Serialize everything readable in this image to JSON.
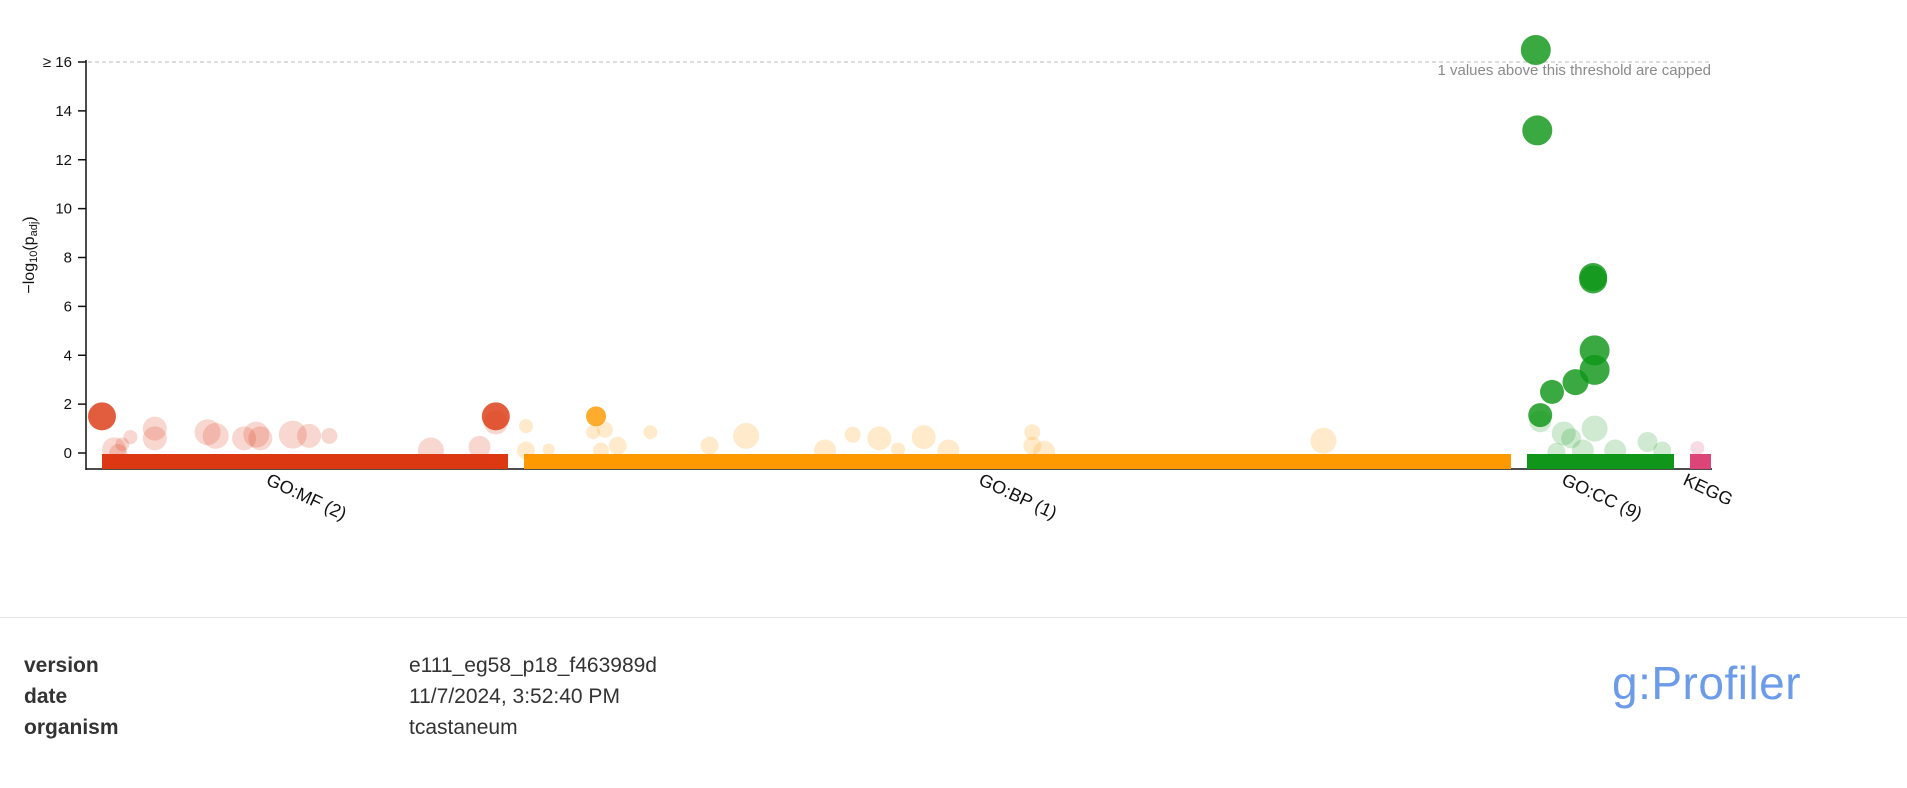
{
  "chart_data": {
    "type": "scatter",
    "ylabel_main": "−log",
    "ylabel_sub": "10",
    "ylabel_paren_open": "(p",
    "ylabel_adj": "adj",
    "ylabel_paren_close": ")",
    "ylim": [
      0,
      16
    ],
    "yticks": [
      {
        "value": 16,
        "label": "≥ 16"
      },
      {
        "value": 14,
        "label": "14"
      },
      {
        "value": 12,
        "label": "12"
      },
      {
        "value": 10,
        "label": "10"
      },
      {
        "value": 8,
        "label": "8"
      },
      {
        "value": 6,
        "label": "6"
      },
      {
        "value": 4,
        "label": "4"
      },
      {
        "value": 2,
        "label": "2"
      },
      {
        "value": 0,
        "label": "0"
      }
    ],
    "threshold": 16,
    "threshold_note": "1 values above this threshold are capped",
    "grid": false,
    "sources": [
      {
        "name": "GO:MF (2)",
        "color": "#dc3912"
      },
      {
        "name": "GO:BP (1)",
        "color": "#ff9900"
      },
      {
        "name": "GO:CC (9)",
        "color": "#109618"
      },
      {
        "name": "KEGG",
        "color": "#dd4477"
      }
    ],
    "points": [
      {
        "source": "GO:MF (2)",
        "x": 0.0,
        "y": 1.5,
        "size": 14,
        "significant": true
      },
      {
        "source": "GO:MF (2)",
        "x": 0.03,
        "y": 0.15,
        "size": 12,
        "significant": false
      },
      {
        "source": "GO:MF (2)",
        "x": 0.04,
        "y": 0.0,
        "size": 9,
        "significant": false
      },
      {
        "source": "GO:MF (2)",
        "x": 0.05,
        "y": 0.35,
        "size": 7,
        "significant": false
      },
      {
        "source": "GO:MF (2)",
        "x": 0.07,
        "y": 0.65,
        "size": 7,
        "significant": false
      },
      {
        "source": "GO:MF (2)",
        "x": 0.13,
        "y": 1.0,
        "size": 12,
        "significant": false
      },
      {
        "source": "GO:MF (2)",
        "x": 0.13,
        "y": 0.6,
        "size": 12,
        "significant": false
      },
      {
        "source": "GO:MF (2)",
        "x": 0.26,
        "y": 0.85,
        "size": 13,
        "significant": false
      },
      {
        "source": "GO:MF (2)",
        "x": 0.28,
        "y": 0.7,
        "size": 13,
        "significant": false
      },
      {
        "source": "GO:MF (2)",
        "x": 0.35,
        "y": 0.6,
        "size": 12,
        "significant": false
      },
      {
        "source": "GO:MF (2)",
        "x": 0.38,
        "y": 0.75,
        "size": 13,
        "significant": false
      },
      {
        "source": "GO:MF (2)",
        "x": 0.39,
        "y": 0.6,
        "size": 12,
        "significant": false
      },
      {
        "source": "GO:MF (2)",
        "x": 0.47,
        "y": 0.75,
        "size": 14,
        "significant": false
      },
      {
        "source": "GO:MF (2)",
        "x": 0.51,
        "y": 0.7,
        "size": 12,
        "significant": false
      },
      {
        "source": "GO:MF (2)",
        "x": 0.56,
        "y": 0.7,
        "size": 8,
        "significant": false
      },
      {
        "source": "GO:MF (2)",
        "x": 0.81,
        "y": 0.1,
        "size": 13,
        "significant": false
      },
      {
        "source": "GO:MF (2)",
        "x": 0.93,
        "y": 0.25,
        "size": 11,
        "significant": false
      },
      {
        "source": "GO:MF (2)",
        "x": 0.97,
        "y": 1.25,
        "size": 12,
        "significant": false
      },
      {
        "source": "GO:MF (2)",
        "x": 0.97,
        "y": 1.5,
        "size": 14,
        "significant": true
      },
      {
        "source": "GO:BP (1)",
        "x": 0.002,
        "y": 1.1,
        "size": 7,
        "significant": false
      },
      {
        "source": "GO:BP (1)",
        "x": 0.002,
        "y": 0.1,
        "size": 9,
        "significant": false
      },
      {
        "source": "GO:BP (1)",
        "x": 0.025,
        "y": 0.15,
        "size": 6,
        "significant": false
      },
      {
        "source": "GO:BP (1)",
        "x": 0.07,
        "y": 0.85,
        "size": 7,
        "significant": false
      },
      {
        "source": "GO:BP (1)",
        "x": 0.073,
        "y": 1.5,
        "size": 10,
        "significant": true
      },
      {
        "source": "GO:BP (1)",
        "x": 0.082,
        "y": 0.95,
        "size": 8,
        "significant": false
      },
      {
        "source": "GO:BP (1)",
        "x": 0.078,
        "y": 0.1,
        "size": 8,
        "significant": false
      },
      {
        "source": "GO:BP (1)",
        "x": 0.095,
        "y": 0.3,
        "size": 9,
        "significant": false
      },
      {
        "source": "GO:BP (1)",
        "x": 0.128,
        "y": 0.85,
        "size": 7,
        "significant": false
      },
      {
        "source": "GO:BP (1)",
        "x": 0.188,
        "y": 0.3,
        "size": 9,
        "significant": false
      },
      {
        "source": "GO:BP (1)",
        "x": 0.225,
        "y": 0.7,
        "size": 13,
        "significant": false
      },
      {
        "source": "GO:BP (1)",
        "x": 0.305,
        "y": 0.1,
        "size": 11,
        "significant": false
      },
      {
        "source": "GO:BP (1)",
        "x": 0.333,
        "y": 0.75,
        "size": 8,
        "significant": false
      },
      {
        "source": "GO:BP (1)",
        "x": 0.36,
        "y": 0.6,
        "size": 12,
        "significant": false
      },
      {
        "source": "GO:BP (1)",
        "x": 0.379,
        "y": 0.15,
        "size": 7,
        "significant": false
      },
      {
        "source": "GO:BP (1)",
        "x": 0.405,
        "y": 0.65,
        "size": 12,
        "significant": false
      },
      {
        "source": "GO:BP (1)",
        "x": 0.43,
        "y": 0.1,
        "size": 11,
        "significant": false
      },
      {
        "source": "GO:BP (1)",
        "x": 0.515,
        "y": 0.85,
        "size": 8,
        "significant": false
      },
      {
        "source": "GO:BP (1)",
        "x": 0.515,
        "y": 0.3,
        "size": 9,
        "significant": false
      },
      {
        "source": "GO:BP (1)",
        "x": 0.527,
        "y": 0.05,
        "size": 11,
        "significant": false
      },
      {
        "source": "GO:BP (1)",
        "x": 0.81,
        "y": 0.5,
        "size": 13,
        "significant": false
      },
      {
        "source": "GO:CC (9)",
        "x": 0.06,
        "y": 16.5,
        "size": 15,
        "significant": true
      },
      {
        "source": "GO:CC (9)",
        "x": 0.07,
        "y": 13.2,
        "size": 15,
        "significant": true
      },
      {
        "source": "GO:CC (9)",
        "x": 0.45,
        "y": 7.2,
        "size": 14,
        "significant": true
      },
      {
        "source": "GO:CC (9)",
        "x": 0.45,
        "y": 7.1,
        "size": 14,
        "significant": true
      },
      {
        "source": "GO:CC (9)",
        "x": 0.46,
        "y": 4.2,
        "size": 15,
        "significant": true
      },
      {
        "source": "GO:CC (9)",
        "x": 0.46,
        "y": 3.4,
        "size": 15,
        "significant": true
      },
      {
        "source": "GO:CC (9)",
        "x": 0.33,
        "y": 2.9,
        "size": 13,
        "significant": true
      },
      {
        "source": "GO:CC (9)",
        "x": 0.17,
        "y": 2.5,
        "size": 12,
        "significant": true
      },
      {
        "source": "GO:CC (9)",
        "x": 0.09,
        "y": 1.55,
        "size": 12,
        "significant": true
      },
      {
        "source": "GO:CC (9)",
        "x": 0.09,
        "y": 1.3,
        "size": 11,
        "significant": false
      },
      {
        "source": "GO:CC (9)",
        "x": 0.25,
        "y": 0.8,
        "size": 12,
        "significant": false
      },
      {
        "source": "GO:CC (9)",
        "x": 0.3,
        "y": 0.6,
        "size": 10,
        "significant": false
      },
      {
        "source": "GO:CC (9)",
        "x": 0.46,
        "y": 1.0,
        "size": 13,
        "significant": false
      },
      {
        "source": "GO:CC (9)",
        "x": 0.2,
        "y": 0.05,
        "size": 9,
        "significant": false
      },
      {
        "source": "GO:CC (9)",
        "x": 0.38,
        "y": 0.1,
        "size": 11,
        "significant": false
      },
      {
        "source": "GO:CC (9)",
        "x": 0.6,
        "y": 0.1,
        "size": 11,
        "significant": false
      },
      {
        "source": "GO:CC (9)",
        "x": 0.82,
        "y": 0.45,
        "size": 10,
        "significant": false
      },
      {
        "source": "GO:CC (9)",
        "x": 0.92,
        "y": 0.1,
        "size": 9,
        "significant": false
      },
      {
        "source": "KEGG",
        "x": 0.35,
        "y": 0.2,
        "size": 7,
        "significant": false
      }
    ]
  },
  "metadata": {
    "rows": [
      {
        "key": "version",
        "value": "e111_eg58_p18_f463989d"
      },
      {
        "key": "date",
        "value": "11/7/2024, 3:52:40 PM"
      },
      {
        "key": "organism",
        "value": "tcastaneum"
      }
    ]
  },
  "brand": {
    "logo_text": "g:Profiler",
    "logo_color": "#6c9bea"
  }
}
